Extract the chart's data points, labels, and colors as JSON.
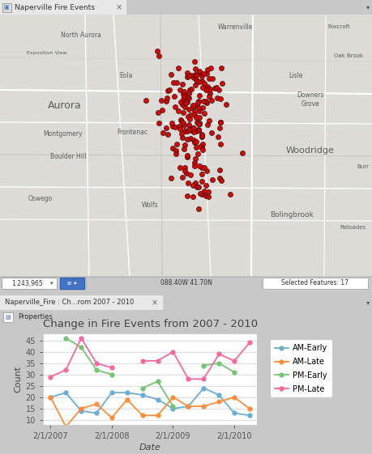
{
  "title": "Change in Fire Events from 2007 - 2010",
  "xlabel": "Date",
  "ylabel": "Count",
  "x_labels": [
    "2/1/2007",
    "2/1/2008",
    "2/1/2009",
    "2/1/2010"
  ],
  "x_positions": [
    0,
    4,
    8,
    12
  ],
  "series": {
    "AM-Early": {
      "color": "#6baed6",
      "values": [
        20,
        22,
        14,
        13,
        22,
        22,
        21,
        19,
        15,
        16,
        24,
        21,
        13,
        12
      ],
      "x": [
        0,
        1,
        2,
        3,
        4,
        5,
        6,
        7,
        8,
        9,
        10,
        11,
        12,
        13
      ]
    },
    "AM-Late": {
      "color": "#fd8d3c",
      "values": [
        20,
        7,
        15,
        17,
        11,
        19,
        12,
        12,
        20,
        16,
        16,
        18,
        20,
        15
      ],
      "x": [
        0,
        1,
        2,
        3,
        4,
        5,
        6,
        7,
        8,
        9,
        10,
        11,
        12,
        13
      ]
    },
    "PM-Early": {
      "color": "#74c476",
      "values": [
        null,
        46,
        42,
        32,
        30,
        null,
        24,
        27,
        16,
        null,
        34,
        35,
        31,
        null
      ],
      "x": [
        0,
        1,
        2,
        3,
        4,
        5,
        6,
        7,
        8,
        9,
        10,
        11,
        12,
        13
      ]
    },
    "PM-Late": {
      "color": "#f768a1",
      "values": [
        29,
        32,
        46,
        35,
        33,
        null,
        36,
        36,
        40,
        28,
        28,
        39,
        36,
        44
      ],
      "x": [
        0,
        1,
        2,
        3,
        4,
        5,
        6,
        7,
        8,
        9,
        10,
        11,
        12,
        13
      ]
    }
  },
  "ylim": [
    8,
    48
  ],
  "yticks": [
    10,
    15,
    20,
    25,
    30,
    35,
    40,
    45
  ],
  "bg_color": "#ffffff",
  "grid_color": "#dddddd",
  "map_tab_text": "Naperville Fire Events",
  "chart_tab_text": "Naperville_Fire : Ch...rom 2007 - 2010",
  "fig_bg": "#c8c8c8",
  "map_bg": "#dcdbd6",
  "tab_bg": "#f0f0f0",
  "panel_bg": "#f5f5f5",
  "status_bar_bg": "#f0f0f0"
}
